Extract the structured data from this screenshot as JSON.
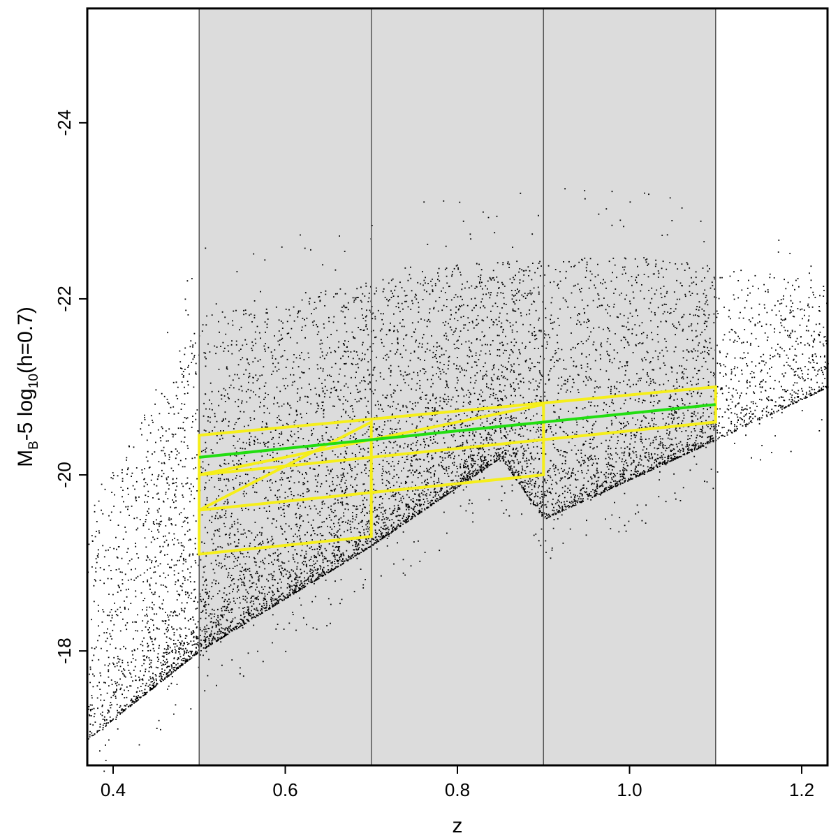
{
  "chart_data": {
    "type": "scatter",
    "title": "",
    "xlabel": "z",
    "ylabel": {
      "prefix": "M",
      "prefix_sub": "B",
      "middle": "-5 log",
      "middle_sub": "10",
      "suffix": "(h=0.7)"
    },
    "xlim": [
      0.37,
      1.23
    ],
    "ylim": [
      -16.7,
      -25.3
    ],
    "y_axis_inverted": true,
    "x_ticks": [
      "0.4",
      "0.6",
      "0.8",
      "1.0",
      "1.2"
    ],
    "x_tick_values": [
      0.4,
      0.6,
      0.8,
      1.0,
      1.2
    ],
    "y_ticks": [
      "-18",
      "-20",
      "-22",
      "-24"
    ],
    "y_tick_values": [
      -18,
      -20,
      -22,
      -24
    ],
    "grid": false,
    "legend": "none",
    "shaded_redshift_bins": [
      [
        0.5,
        0.7
      ],
      [
        0.7,
        0.9
      ],
      [
        0.9,
        1.1
      ]
    ],
    "bin_edges_z": [
      0.5,
      0.7,
      0.9,
      1.1
    ],
    "green_line": {
      "z": [
        0.5,
        1.1
      ],
      "M": [
        -20.2,
        -20.8
      ]
    },
    "yellow_selection_polygons": [
      [
        [
          0.5,
          -20.45
        ],
        [
          1.1,
          -21.0
        ],
        [
          1.1,
          -20.6
        ],
        [
          0.5,
          -20.0
        ]
      ],
      [
        [
          0.5,
          -20.0
        ],
        [
          0.9,
          -20.8
        ],
        [
          0.9,
          -20.0
        ],
        [
          0.5,
          -19.6
        ]
      ],
      [
        [
          0.5,
          -19.6
        ],
        [
          0.7,
          -20.6
        ],
        [
          0.7,
          -19.3
        ],
        [
          0.5,
          -19.1
        ]
      ]
    ],
    "series": [
      {
        "type": "scatter",
        "point_count_approx": 9000,
        "distribution_envelope": {
          "z_range": [
            0.37,
            1.23
          ],
          "faint_limit_M": [
            [
              0.37,
              -17.0
            ],
            [
              0.5,
              -18.0
            ],
            [
              0.7,
              -19.2
            ],
            [
              0.85,
              -20.2
            ],
            [
              0.9,
              -19.5
            ],
            [
              1.1,
              -20.4
            ],
            [
              1.23,
              -21.0
            ]
          ],
          "bright_limit_M": [
            [
              0.37,
              -20.5
            ],
            [
              0.5,
              -22.6
            ],
            [
              0.8,
              -23.2
            ],
            [
              1.0,
              -23.3
            ],
            [
              1.23,
              -23.0
            ]
          ]
        }
      }
    ],
    "colors": {
      "points": "#000000",
      "shade": "#dcdcdc",
      "bin_lines": "#555555",
      "green_line": "#22dd11",
      "yellow_boxes": "#f5ee1a",
      "frame": "#000000"
    }
  }
}
